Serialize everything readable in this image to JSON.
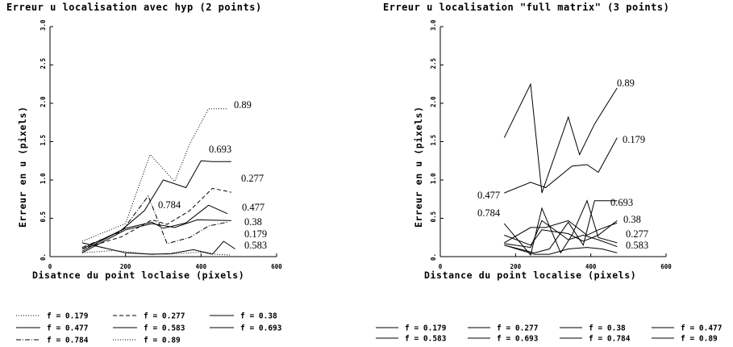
{
  "chart_data": [
    {
      "type": "line",
      "title": "Erreur u localisation avec hyp (2 points)",
      "xlabel": "Disatnce du point loclaise (pixels)",
      "ylabel": "Erreur en u (pixels)",
      "xlim": [
        0,
        600
      ],
      "ylim": [
        0,
        3.0
      ],
      "x_ticks": [
        "0",
        "200",
        "400",
        "600"
      ],
      "y_ticks": [
        "0.",
        "0.5",
        "1.0",
        "1.5",
        "2.0",
        "2.5",
        "3.0"
      ],
      "grid": false,
      "legend_position": "bottom",
      "series": [
        {
          "name": "f = 0.179",
          "x": [
            85,
            200,
            265,
            330,
            370,
            420,
            470
          ],
          "y": [
            0.2,
            0.43,
            1.33,
            0.98,
            1.47,
            1.93,
            1.93
          ],
          "line": "dotted"
        },
        {
          "name": "f = 0.277",
          "x": [
            85,
            190,
            270,
            310,
            370,
            430,
            480
          ],
          "y": [
            0.1,
            0.26,
            0.48,
            0.42,
            0.6,
            0.89,
            0.84
          ],
          "line": "dashed"
        },
        {
          "name": "f = 0.38",
          "x": [
            85,
            200,
            270,
            330,
            390,
            480
          ],
          "y": [
            0.05,
            0.35,
            0.43,
            0.38,
            0.48,
            0.47
          ],
          "line": "solid"
        },
        {
          "name": "f = 0.477",
          "x": [
            85,
            200,
            270,
            300,
            360,
            420,
            470
          ],
          "y": [
            0.1,
            0.37,
            0.45,
            0.37,
            0.44,
            0.67,
            0.56
          ],
          "line": "solid"
        },
        {
          "name": "f = 0.583",
          "x": [
            85,
            200,
            270,
            320,
            380,
            430,
            460,
            490
          ],
          "y": [
            0.18,
            0.05,
            0.03,
            0.04,
            0.09,
            0.03,
            0.2,
            0.1
          ],
          "line": "solid"
        },
        {
          "name": "f = 0.693",
          "x": [
            85,
            190,
            250,
            300,
            360,
            400,
            430,
            480
          ],
          "y": [
            0.07,
            0.35,
            0.6,
            1.0,
            0.9,
            1.25,
            1.24,
            1.24
          ],
          "line": "solid"
        },
        {
          "name": "f = 0.784",
          "x": [
            85,
            190,
            260,
            310,
            370,
            420,
            470
          ],
          "y": [
            0.12,
            0.33,
            0.79,
            0.17,
            0.25,
            0.4,
            0.45
          ],
          "line": "dashdot"
        },
        {
          "name": "f = 0.89",
          "x": [
            85,
            170,
            250,
            310,
            370,
            410,
            440,
            480
          ],
          "y": [
            0.05,
            0.08,
            0.04,
            0.03,
            0.05,
            0.06,
            0.03,
            0.02
          ],
          "line": "dotted"
        }
      ],
      "annotations": [
        "0.89",
        "0.693",
        "0.277",
        "0.477",
        "0.38",
        "0.179",
        "0.583",
        "0.784"
      ]
    },
    {
      "type": "line",
      "title": "Erreur u localisation \"full matrix\" (3 points)",
      "xlabel": "Distance du point localise (pixels)",
      "ylabel": "Erreur en u (pixels)",
      "xlim": [
        0,
        600
      ],
      "ylim": [
        0,
        3.0
      ],
      "x_ticks": [
        "0",
        "200",
        "400",
        "600"
      ],
      "y_ticks": [
        "0.",
        "0.5",
        "1.0",
        "1.5",
        "2.0",
        "2.5",
        "3.0"
      ],
      "grid": false,
      "legend_position": "bottom",
      "series": [
        {
          "name": "f = 0.179",
          "x": [
            170,
            240,
            270,
            340,
            380,
            420,
            470
          ],
          "y": [
            0.17,
            0.12,
            0.47,
            0.22,
            0.28,
            0.22,
            0.13
          ],
          "line": "solid"
        },
        {
          "name": "f = 0.277",
          "x": [
            170,
            240,
            270,
            340,
            380,
            420,
            470
          ],
          "y": [
            0.28,
            0.15,
            0.35,
            0.3,
            0.2,
            0.28,
            0.47
          ],
          "line": "solid"
        },
        {
          "name": "f = 0.38",
          "x": [
            170,
            240,
            280,
            340,
            390,
            420,
            470
          ],
          "y": [
            0.18,
            0.38,
            0.38,
            0.47,
            0.28,
            0.35,
            0.44
          ],
          "line": "solid"
        },
        {
          "name": "f = 0.477",
          "x": [
            170,
            240,
            280,
            350,
            390,
            420,
            470
          ],
          "y": [
            0.83,
            0.97,
            0.9,
            1.18,
            1.2,
            1.1,
            1.55
          ],
          "line": "solid"
        },
        {
          "name": "f = 0.583",
          "x": [
            170,
            250,
            290,
            340,
            390,
            430,
            470
          ],
          "y": [
            0.15,
            0.03,
            0.03,
            0.1,
            0.12,
            0.1,
            0.05
          ],
          "line": "solid"
        },
        {
          "name": "f = 0.693",
          "x": [
            170,
            250,
            290,
            340,
            380,
            410,
            470
          ],
          "y": [
            0.15,
            0.05,
            0.1,
            0.45,
            0.15,
            0.73,
            0.73
          ],
          "line": "solid"
        },
        {
          "name": "f = 0.784",
          "x": [
            170,
            240,
            270,
            320,
            350,
            390,
            420,
            470
          ],
          "y": [
            0.43,
            0.02,
            0.63,
            0.05,
            0.28,
            0.73,
            0.25,
            0.18
          ],
          "line": "solid"
        },
        {
          "name": "f = 0.89",
          "x": [
            170,
            240,
            270,
            340,
            370,
            410,
            470
          ],
          "y": [
            1.55,
            2.25,
            0.83,
            1.82,
            1.33,
            1.73,
            2.2
          ],
          "line": "solid"
        }
      ],
      "annotations": [
        "0.89",
        "0.179",
        "0.477",
        "0.693",
        "0.784",
        "0.38",
        "0.277",
        "0.583"
      ]
    }
  ]
}
